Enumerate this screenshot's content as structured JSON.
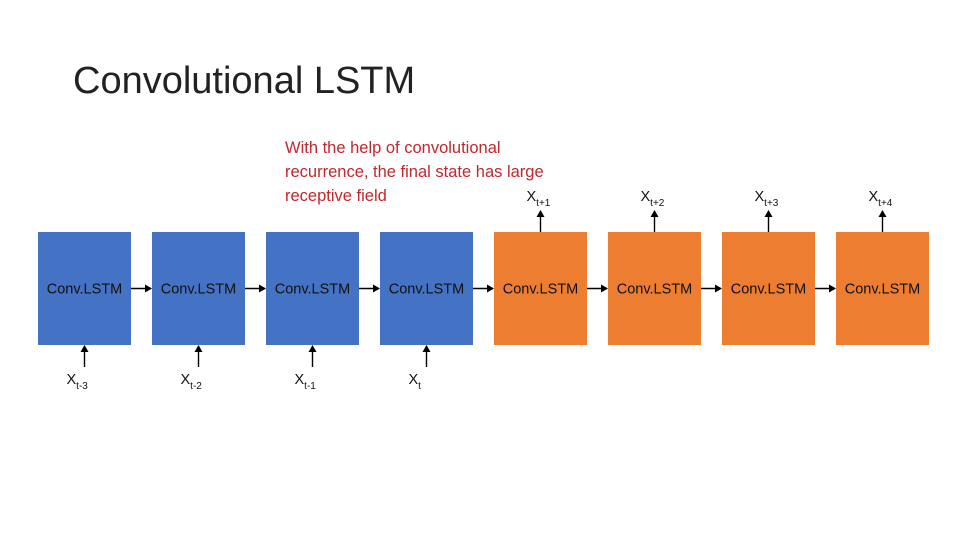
{
  "header": {
    "title": "Convolutional LSTM"
  },
  "annotation": {
    "lines": [
      "With the help of convolutional",
      "recurrence, the final state has large",
      "receptive field"
    ]
  },
  "cells": [
    {
      "label": "Conv.LSTM",
      "color": "#4472c4",
      "input": {
        "base": "X",
        "sub": "t-3"
      }
    },
    {
      "label": "Conv.LSTM",
      "color": "#4472c4",
      "input": {
        "base": "X",
        "sub": "t-2"
      }
    },
    {
      "label": "Conv.LSTM",
      "color": "#4472c4",
      "input": {
        "base": "X",
        "sub": "t-1"
      }
    },
    {
      "label": "Conv.LSTM",
      "color": "#4472c4",
      "input": {
        "base": "X",
        "sub": "t"
      }
    },
    {
      "label": "Conv.LSTM",
      "color": "#ed7d31",
      "output": {
        "base": "X",
        "sub": "t+1"
      }
    },
    {
      "label": "Conv.LSTM",
      "color": "#ed7d31",
      "output": {
        "base": "X",
        "sub": "t+2"
      }
    },
    {
      "label": "Conv.LSTM",
      "color": "#ed7d31",
      "output": {
        "base": "X",
        "sub": "t+3"
      }
    },
    {
      "label": "Conv.LSTM",
      "color": "#ed7d31",
      "output": {
        "base": "X",
        "sub": "t+4"
      }
    }
  ]
}
